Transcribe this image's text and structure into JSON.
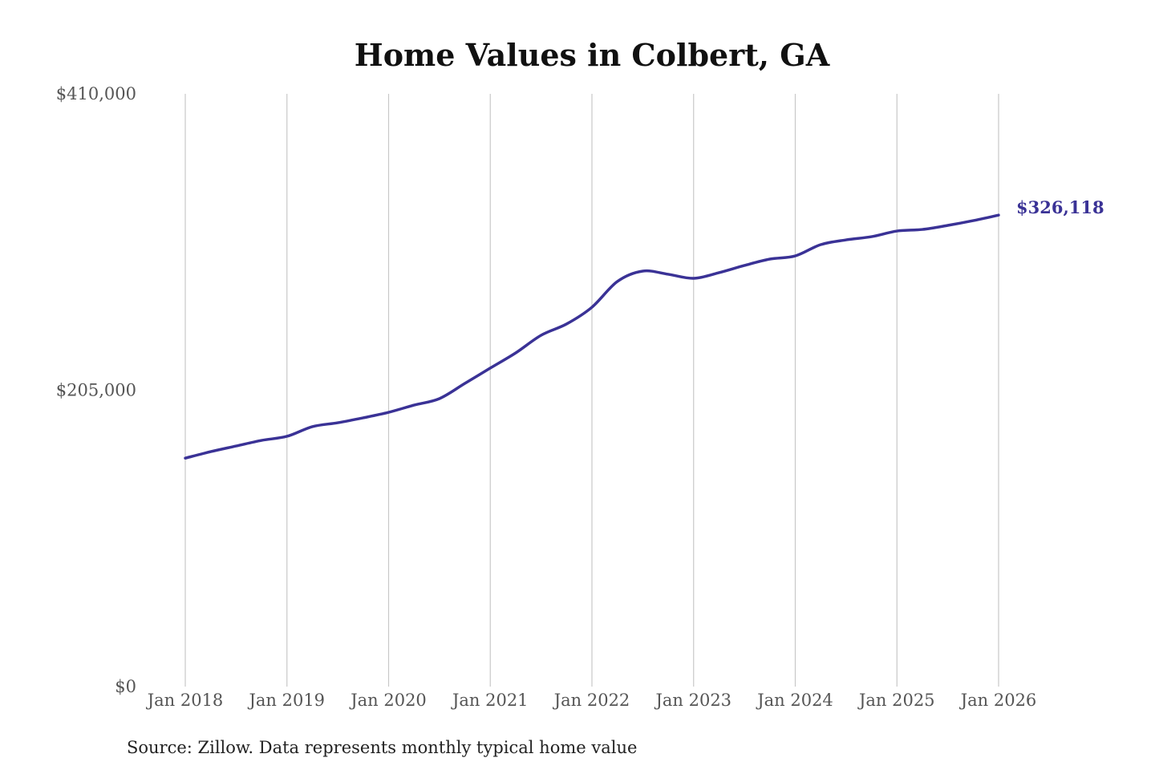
{
  "chart_data": {
    "type": "line",
    "title": "Home Values in Colbert, GA",
    "xlabel": "",
    "ylabel": "",
    "ylim": [
      0,
      410000
    ],
    "y_ticks": [
      0,
      205000,
      410000
    ],
    "y_tick_labels": [
      "$0",
      "$205,000",
      "$410,000"
    ],
    "x_ticks": [
      "2018-01",
      "2019-01",
      "2020-01",
      "2021-01",
      "2022-01",
      "2023-01",
      "2024-01",
      "2025-01",
      "2026-01"
    ],
    "x_tick_labels": [
      "Jan 2018",
      "Jan 2019",
      "Jan 2020",
      "Jan 2021",
      "Jan 2022",
      "Jan 2023",
      "Jan 2024",
      "Jan 2025",
      "Jan 2026"
    ],
    "grid": "vertical lines at x ticks",
    "line_color": "#3a3296",
    "end_label": "$326,118",
    "series": [
      {
        "x": [
          "2018-01",
          "2018-04",
          "2018-07",
          "2018-10",
          "2019-01",
          "2019-04",
          "2019-07",
          "2019-10",
          "2020-01",
          "2020-04",
          "2020-07",
          "2020-10",
          "2021-01",
          "2021-04",
          "2021-07",
          "2021-10",
          "2022-01",
          "2022-04",
          "2022-07",
          "2022-10",
          "2023-01",
          "2023-04",
          "2023-07",
          "2023-10",
          "2024-01",
          "2024-04",
          "2024-07",
          "2024-10",
          "2025-01",
          "2025-04",
          "2025-07",
          "2025-10",
          "2026-01"
        ],
        "values": [
          158000,
          162500,
          166400,
          170300,
          173100,
          179800,
          182500,
          185900,
          189700,
          194700,
          199200,
          209700,
          220300,
          230800,
          243000,
          250800,
          262400,
          280200,
          287400,
          285200,
          282400,
          286300,
          291300,
          295700,
          297900,
          305700,
          309000,
          311200,
          315100,
          316200,
          319000,
          322300,
          326118
        ]
      }
    ]
  },
  "source": "Source: Zillow. Data represents monthly typical home value"
}
